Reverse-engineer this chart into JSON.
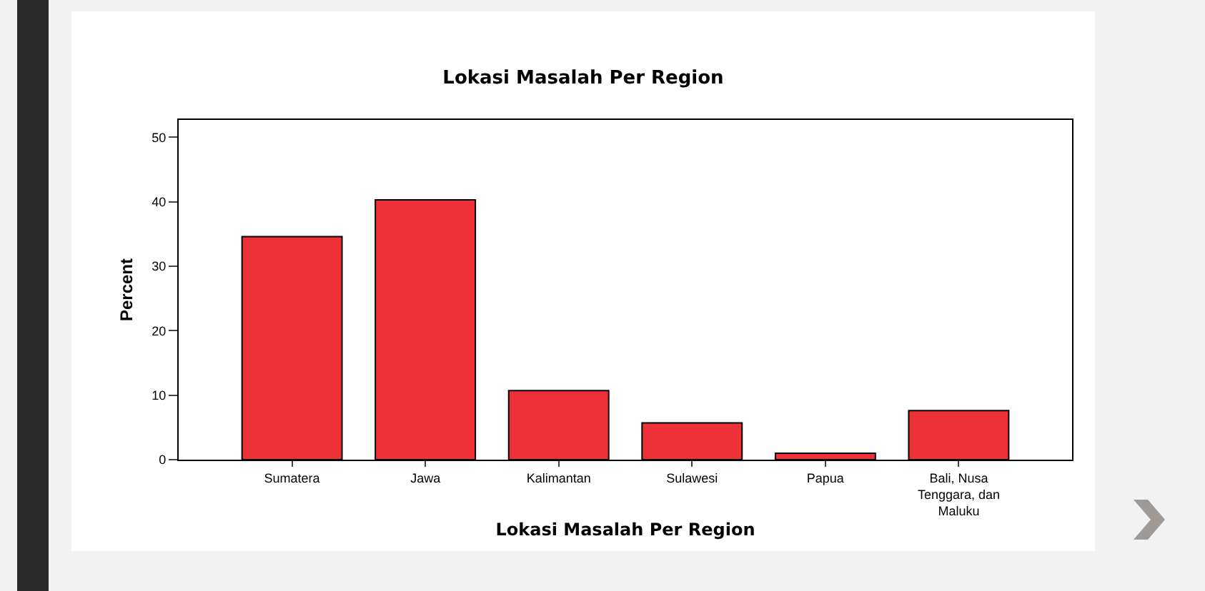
{
  "chart_data": {
    "type": "bar",
    "title": "Lokasi Masalah Per Region",
    "xlabel": "Lokasi Masalah Per Region",
    "ylabel": "Percent",
    "categories": [
      "Sumatera",
      "Jawa",
      "Kalimantan",
      "Sulawesi",
      "Papua",
      "Bali, Nusa Tenggara, dan Maluku"
    ],
    "values": [
      34.6,
      40.3,
      10.7,
      5.7,
      1.0,
      7.6
    ],
    "color": "#ee3139",
    "ylim": [
      0,
      52.7
    ],
    "yticks": [
      0,
      10,
      20,
      30,
      40,
      50
    ]
  }
}
